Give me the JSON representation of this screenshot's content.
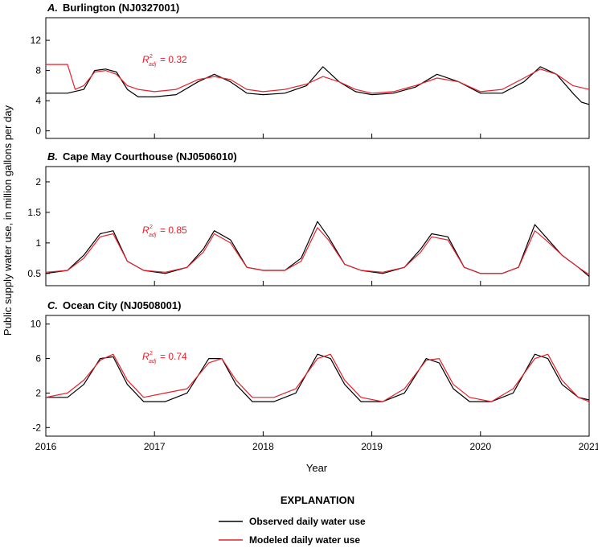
{
  "ylabel": "Public supply water use, in million gallons per day",
  "xlabel": "Year",
  "x_ticks": [
    "2016",
    "2017",
    "2018",
    "2019",
    "2020",
    "2021"
  ],
  "legend": {
    "title": "EXPLANATION",
    "observed": "Observed daily water use",
    "modeled": "Modeled daily water use"
  },
  "colors": {
    "observed": "#000000",
    "modeled": "#e8202a"
  },
  "chart_data": [
    {
      "type": "line",
      "panel": "A.",
      "title": "Burlington (NJ0327001)",
      "r2_label": "R²adj = 0.32",
      "r2_value": "= 0.32",
      "x_range": [
        2016,
        2021
      ],
      "ylim": [
        -1,
        15
      ],
      "y_ticks": [
        "0",
        "4",
        "8",
        "12"
      ],
      "series": [
        {
          "name": "Observed daily water use",
          "x": [
            2016.0,
            2016.2,
            2016.35,
            2016.45,
            2016.55,
            2016.65,
            2016.75,
            2016.85,
            2017.0,
            2017.2,
            2017.4,
            2017.55,
            2017.7,
            2017.85,
            2018.0,
            2018.2,
            2018.4,
            2018.55,
            2018.7,
            2018.85,
            2019.0,
            2019.2,
            2019.4,
            2019.6,
            2019.8,
            2020.0,
            2020.2,
            2020.4,
            2020.55,
            2020.7,
            2020.85,
            2020.93,
            2021.0
          ],
          "values": [
            5.0,
            5.0,
            5.5,
            8.0,
            8.2,
            7.8,
            5.5,
            4.5,
            4.5,
            4.8,
            6.5,
            7.5,
            6.5,
            5.0,
            4.8,
            5.0,
            6.0,
            8.5,
            6.5,
            5.2,
            4.8,
            5.0,
            5.8,
            7.5,
            6.5,
            5.0,
            5.0,
            6.5,
            8.5,
            7.5,
            5.0,
            3.8,
            3.5
          ]
        },
        {
          "name": "Modeled daily water use",
          "x": [
            2016.0,
            2016.2,
            2016.27,
            2016.35,
            2016.45,
            2016.55,
            2016.65,
            2016.75,
            2016.85,
            2017.0,
            2017.2,
            2017.4,
            2017.55,
            2017.7,
            2017.85,
            2018.0,
            2018.2,
            2018.4,
            2018.55,
            2018.7,
            2018.85,
            2019.0,
            2019.2,
            2019.4,
            2019.6,
            2019.8,
            2020.0,
            2020.2,
            2020.4,
            2020.55,
            2020.7,
            2020.85,
            2021.0
          ],
          "values": [
            8.8,
            8.8,
            5.5,
            6.0,
            7.8,
            8.0,
            7.5,
            6.0,
            5.5,
            5.2,
            5.5,
            6.8,
            7.2,
            6.8,
            5.5,
            5.2,
            5.5,
            6.2,
            7.2,
            6.5,
            5.5,
            5.0,
            5.2,
            6.0,
            7.0,
            6.5,
            5.2,
            5.5,
            7.0,
            8.2,
            7.5,
            6.0,
            5.5
          ]
        }
      ]
    },
    {
      "type": "line",
      "panel": "B.",
      "title": "Cape May Courthouse (NJ0506010)",
      "r2_label": "R²adj = 0.85",
      "r2_value": "= 0.85",
      "x_range": [
        2016,
        2021
      ],
      "ylim": [
        0.3,
        2.25
      ],
      "y_ticks": [
        "0.5",
        "1",
        "1.5",
        "2"
      ],
      "series": [
        {
          "name": "Observed daily water use",
          "x": [
            2016.0,
            2016.2,
            2016.35,
            2016.5,
            2016.62,
            2016.75,
            2016.9,
            2017.1,
            2017.3,
            2017.45,
            2017.55,
            2017.7,
            2017.85,
            2018.0,
            2018.2,
            2018.35,
            2018.5,
            2018.6,
            2018.75,
            2018.9,
            2019.1,
            2019.3,
            2019.45,
            2019.55,
            2019.7,
            2019.85,
            2020.0,
            2020.2,
            2020.35,
            2020.5,
            2020.6,
            2020.75,
            2020.9,
            2021.0
          ],
          "values": [
            0.5,
            0.55,
            0.8,
            1.15,
            1.2,
            0.7,
            0.55,
            0.5,
            0.6,
            0.9,
            1.2,
            1.05,
            0.6,
            0.55,
            0.55,
            0.75,
            1.35,
            1.1,
            0.65,
            0.55,
            0.5,
            0.6,
            0.9,
            1.15,
            1.1,
            0.6,
            0.5,
            0.5,
            0.6,
            1.3,
            1.1,
            0.8,
            0.6,
            0.45
          ]
        },
        {
          "name": "Modeled daily water use",
          "x": [
            2016.0,
            2016.2,
            2016.35,
            2016.5,
            2016.62,
            2016.75,
            2016.9,
            2017.1,
            2017.3,
            2017.45,
            2017.55,
            2017.7,
            2017.85,
            2018.0,
            2018.2,
            2018.35,
            2018.5,
            2018.6,
            2018.75,
            2018.9,
            2019.1,
            2019.3,
            2019.45,
            2019.55,
            2019.7,
            2019.85,
            2020.0,
            2020.2,
            2020.35,
            2020.5,
            2020.6,
            2020.75,
            2020.9,
            2021.0
          ],
          "values": [
            0.52,
            0.55,
            0.75,
            1.1,
            1.15,
            0.7,
            0.55,
            0.52,
            0.6,
            0.85,
            1.15,
            1.0,
            0.6,
            0.55,
            0.55,
            0.7,
            1.25,
            1.05,
            0.65,
            0.55,
            0.52,
            0.6,
            0.85,
            1.1,
            1.05,
            0.6,
            0.5,
            0.5,
            0.6,
            1.2,
            1.05,
            0.8,
            0.6,
            0.48
          ]
        }
      ]
    },
    {
      "type": "line",
      "panel": "C.",
      "title": "Ocean City (NJ0508001)",
      "r2_label": "R²adj = 0.74",
      "r2_value": "= 0.74",
      "x_range": [
        2016,
        2021
      ],
      "ylim": [
        -3,
        11
      ],
      "y_ticks": [
        "-2",
        "2",
        "6",
        "10"
      ],
      "series": [
        {
          "name": "Observed daily water use",
          "x": [
            2016.0,
            2016.2,
            2016.35,
            2016.5,
            2016.62,
            2016.75,
            2016.9,
            2017.1,
            2017.3,
            2017.5,
            2017.62,
            2017.75,
            2017.9,
            2018.1,
            2018.3,
            2018.5,
            2018.62,
            2018.75,
            2018.9,
            2019.1,
            2019.3,
            2019.5,
            2019.62,
            2019.75,
            2019.9,
            2020.1,
            2020.3,
            2020.5,
            2020.62,
            2020.75,
            2020.9,
            2021.0
          ],
          "values": [
            1.5,
            1.5,
            3.0,
            6.0,
            6.2,
            3.0,
            1.0,
            1.0,
            2.0,
            6.0,
            6.0,
            3.0,
            1.0,
            1.0,
            2.0,
            6.5,
            6.0,
            3.0,
            1.0,
            1.0,
            2.0,
            6.0,
            5.5,
            2.5,
            1.0,
            1.0,
            2.0,
            6.5,
            6.0,
            3.0,
            1.5,
            1.2
          ]
        },
        {
          "name": "Modeled daily water use",
          "x": [
            2016.0,
            2016.2,
            2016.35,
            2016.5,
            2016.62,
            2016.75,
            2016.9,
            2017.1,
            2017.3,
            2017.5,
            2017.62,
            2017.75,
            2017.9,
            2018.1,
            2018.3,
            2018.5,
            2018.62,
            2018.75,
            2018.9,
            2019.1,
            2019.3,
            2019.5,
            2019.62,
            2019.75,
            2019.9,
            2020.1,
            2020.3,
            2020.5,
            2020.62,
            2020.75,
            2020.9,
            2021.0
          ],
          "values": [
            1.5,
            2.0,
            3.5,
            5.8,
            6.5,
            3.5,
            1.5,
            2.0,
            2.5,
            5.5,
            6.0,
            3.5,
            1.5,
            1.5,
            2.5,
            6.0,
            6.5,
            3.5,
            1.5,
            1.0,
            2.5,
            5.8,
            6.0,
            3.0,
            1.5,
            1.0,
            2.5,
            6.0,
            6.5,
            3.5,
            1.5,
            1.0
          ]
        }
      ]
    }
  ]
}
